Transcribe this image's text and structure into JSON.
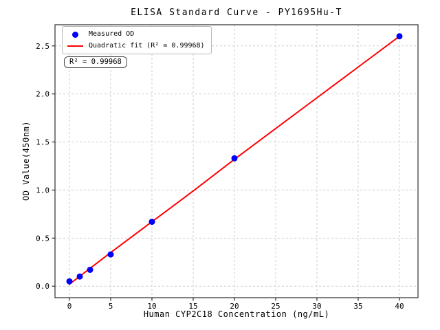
{
  "title": "ELISA Standard Curve - PY1695Hu-T",
  "colors": {
    "dot": "#0000ff",
    "fit_line": "#ff0000",
    "grid": "#cccccc",
    "spine": "#2b2b2b",
    "background": "#ffffff",
    "text": "#000000"
  },
  "legend": {
    "position": "upper left",
    "items": [
      {
        "label": "Measured OD",
        "marker": "blue-dot-icon"
      },
      {
        "label": "Quadratic fit (R² = 0.99968)",
        "marker": "red-line-icon"
      }
    ]
  },
  "annotation": {
    "text": "R² = 0.99968"
  },
  "chart_data": {
    "type": "scatter",
    "title": "ELISA Standard Curve - PY1695Hu-T",
    "xlabel": "Human CYP2C18 Concentration (ng/mL)",
    "ylabel": "OD Value(450nm)",
    "series": [
      {
        "name": "Measured OD",
        "x": [
          0,
          1.25,
          2.5,
          5,
          10,
          20,
          40
        ],
        "y": [
          0.05,
          0.1,
          0.17,
          0.33,
          0.67,
          1.33,
          2.6
        ]
      }
    ],
    "fit": {
      "name": "Quadratic fit",
      "type": "quadratic",
      "r_squared": 0.99968,
      "x": [
        0,
        5,
        10,
        15,
        20,
        25,
        30,
        35,
        40
      ],
      "y": [
        0.02,
        0.35,
        0.67,
        0.99,
        1.32,
        1.64,
        1.96,
        2.28,
        2.6
      ]
    },
    "xlim": [
      -1.75,
      42.25
    ],
    "ylim": [
      -0.12,
      2.72
    ],
    "xticks": [
      0,
      5,
      10,
      15,
      20,
      25,
      30,
      35,
      40
    ],
    "yticks": [
      0.0,
      0.5,
      1.0,
      1.5,
      2.0,
      2.5
    ],
    "grid": true,
    "grid_style": "dashed",
    "legend_position": "upper left"
  }
}
